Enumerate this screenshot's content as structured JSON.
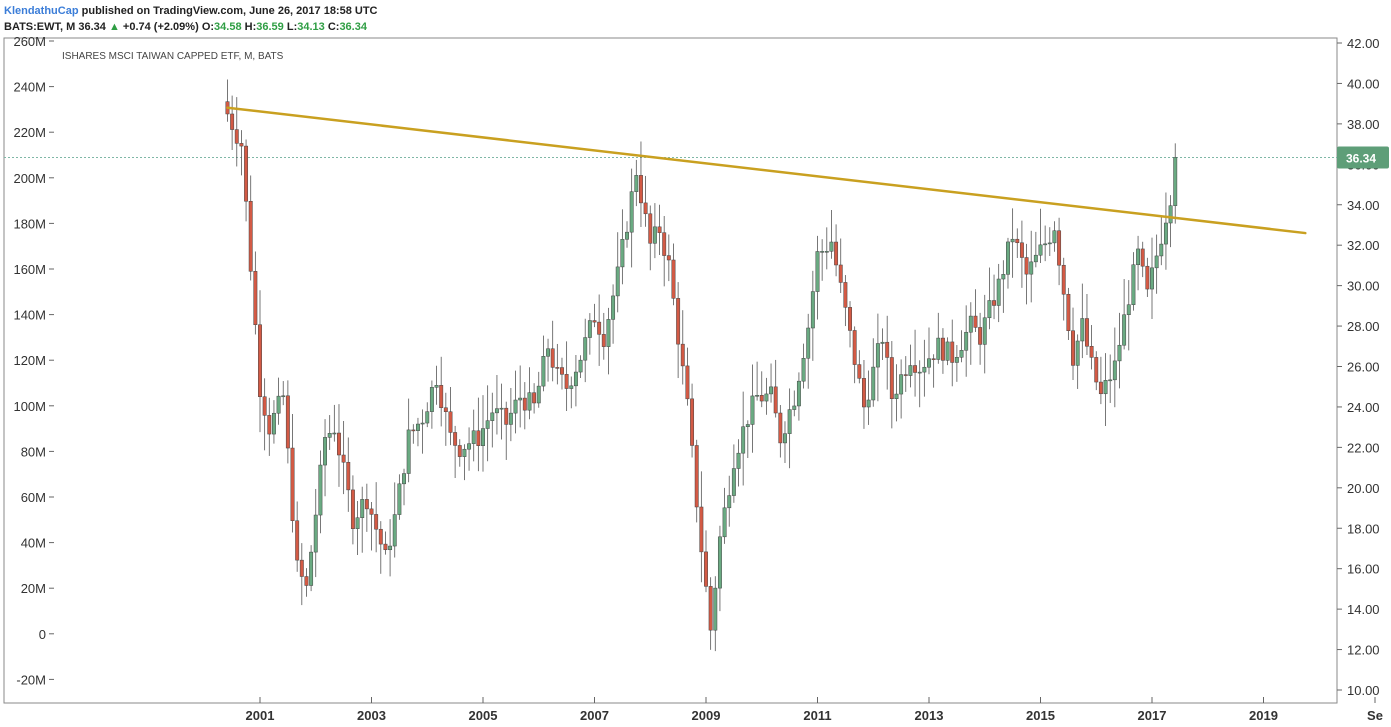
{
  "header": {
    "author": "KlendathuCap",
    "published": "published on TradingView.com, June 26, 2017 18:58 UTC",
    "symbol": "BATS:EWT, M",
    "last": "36.34",
    "change": "+0.74 (+2.09%)",
    "o_label": "O:",
    "o_value": "34.58",
    "h_label": "H:",
    "h_value": "36.59",
    "l_label": "L:",
    "l_value": "34.13",
    "c_label": "C:",
    "c_value": "36.34"
  },
  "colors": {
    "up": "#6aaa82",
    "down": "#d35a45",
    "trendline": "#c9a020",
    "badge": "#5e9e78",
    "price_line": "#7fb7a6"
  },
  "chart_data": {
    "type": "candlestick",
    "title": "ISHARES MSCI TAIWAN CAPPED ETF, M, BATS",
    "current_price_label": "36.34",
    "price_axis": {
      "side": "right",
      "ticks": [
        "42.00",
        "40.00",
        "38.00",
        "36.00",
        "34.00",
        "32.00",
        "30.00",
        "28.00",
        "26.00",
        "24.00",
        "22.00",
        "20.00",
        "18.00",
        "16.00",
        "14.00",
        "12.00",
        "10.00"
      ],
      "range": [
        10,
        42
      ]
    },
    "volume_axis": {
      "side": "left",
      "ticks": [
        "260M",
        "240M",
        "220M",
        "200M",
        "180M",
        "160M",
        "140M",
        "120M",
        "100M",
        "80M",
        "60M",
        "40M",
        "20M",
        "0",
        "-20M"
      ]
    },
    "x_ticks": [
      "2001",
      "2003",
      "2005",
      "2007",
      "2009",
      "2011",
      "2013",
      "2015",
      "2017",
      "2019",
      "Se"
    ],
    "trendline": {
      "start": {
        "date": "2000-06",
        "price": 38.8
      },
      "end": {
        "date": "2019-10",
        "price": 32.6
      }
    },
    "pivots": [
      [
        "2000-06",
        38.5
      ],
      [
        "2000-09",
        37.0
      ],
      [
        "2001-01",
        25.0
      ],
      [
        "2001-03",
        23.0
      ],
      [
        "2001-06",
        24.5
      ],
      [
        "2001-09",
        16.0
      ],
      [
        "2001-11",
        15.0
      ],
      [
        "2002-03",
        22.5
      ],
      [
        "2002-05",
        23.0
      ],
      [
        "2002-09",
        18.5
      ],
      [
        "2002-12",
        19.5
      ],
      [
        "2003-04",
        16.5
      ],
      [
        "2003-06",
        18.5
      ],
      [
        "2003-09",
        22.5
      ],
      [
        "2003-12",
        23.5
      ],
      [
        "2004-03",
        25.5
      ],
      [
        "2004-06",
        22.5
      ],
      [
        "2004-08",
        22.0
      ],
      [
        "2004-12",
        22.5
      ],
      [
        "2005-03",
        23.8
      ],
      [
        "2005-06",
        23.2
      ],
      [
        "2005-09",
        24.5
      ],
      [
        "2005-12",
        24.0
      ],
      [
        "2006-03",
        27.0
      ],
      [
        "2006-05",
        25.5
      ],
      [
        "2006-07",
        25.0
      ],
      [
        "2006-10",
        26.5
      ],
      [
        "2007-01",
        28.5
      ],
      [
        "2007-03",
        27.5
      ],
      [
        "2007-06",
        30.5
      ],
      [
        "2007-10",
        35.7
      ],
      [
        "2008-01",
        32.0
      ],
      [
        "2008-03",
        32.8
      ],
      [
        "2008-05",
        31.0
      ],
      [
        "2008-09",
        24.0
      ],
      [
        "2008-12",
        17.0
      ],
      [
        "2009-02",
        13.0
      ],
      [
        "2009-04",
        17.5
      ],
      [
        "2009-07",
        21.5
      ],
      [
        "2009-10",
        23.5
      ],
      [
        "2009-12",
        24.5
      ],
      [
        "2010-03",
        24.5
      ],
      [
        "2010-05",
        22.5
      ],
      [
        "2010-08",
        24.5
      ],
      [
        "2010-11",
        28.0
      ],
      [
        "2011-01",
        31.5
      ],
      [
        "2011-04",
        32.2
      ],
      [
        "2011-08",
        27.5
      ],
      [
        "2011-11",
        24.0
      ],
      [
        "2012-03",
        27.5
      ],
      [
        "2012-05",
        24.5
      ],
      [
        "2012-09",
        26.5
      ],
      [
        "2012-11",
        26.0
      ],
      [
        "2013-03",
        27.0
      ],
      [
        "2013-06",
        26.5
      ],
      [
        "2013-10",
        28.0
      ],
      [
        "2013-12",
        27.5
      ],
      [
        "2014-04",
        30.0
      ],
      [
        "2014-07",
        32.5
      ],
      [
        "2014-10",
        30.5
      ],
      [
        "2015-03",
        32.5
      ],
      [
        "2015-04",
        33.0
      ],
      [
        "2015-08",
        26.5
      ],
      [
        "2015-10",
        28.0
      ],
      [
        "2015-12",
        26.0
      ],
      [
        "2016-02",
        24.5
      ],
      [
        "2016-05",
        26.0
      ],
      [
        "2016-08",
        29.5
      ],
      [
        "2016-10",
        31.5
      ],
      [
        "2016-12",
        29.5
      ],
      [
        "2017-03",
        32.5
      ],
      [
        "2017-05",
        34.5
      ],
      [
        "2017-06",
        36.34
      ]
    ]
  }
}
